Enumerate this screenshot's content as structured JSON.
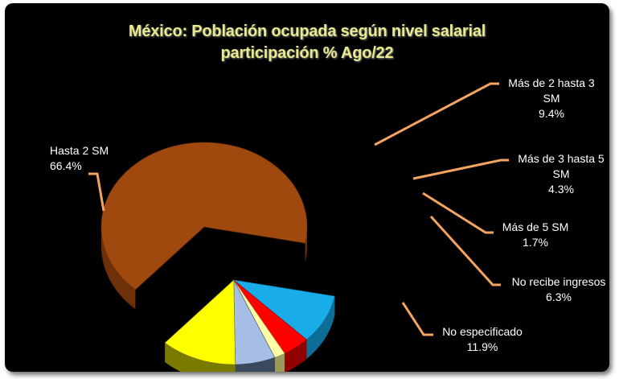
{
  "colors": {
    "background": "#000000",
    "title": "#e9e98f",
    "leader_line": "#f4a460",
    "label_text": "#ffffff"
  },
  "chart_data": {
    "type": "pie",
    "title": "México: Población ocupada según nivel salarial",
    "subtitle": "participación % Ago/22",
    "slices": [
      {
        "label": "Hasta 2 SM",
        "value": 66.4,
        "color": "#a0490f",
        "side_color": "#6e3009",
        "exploded": false,
        "label_lines": [
          "Hasta 2 SM",
          "66.4%"
        ]
      },
      {
        "label": "Más de 2 hasta 3 SM",
        "value": 9.4,
        "color": "#18ade8",
        "side_color": "#0e6d96",
        "exploded": true,
        "label_lines": [
          "Más de 2 hasta 3",
          "SM",
          "9.4%"
        ]
      },
      {
        "label": "Más de 3 hasta 5 SM",
        "value": 4.3,
        "color": "#ff0000",
        "side_color": "#900000",
        "exploded": true,
        "label_lines": [
          "Más de 3 hasta 5",
          "SM",
          "4.3%"
        ]
      },
      {
        "label": "Más de 5 SM",
        "value": 1.7,
        "color": "#ffffa6",
        "side_color": "#9a9a5a",
        "exploded": true,
        "label_lines": [
          "Más de 5 SM",
          "1.7%"
        ]
      },
      {
        "label": "No recibe ingresos",
        "value": 6.3,
        "color": "#a6bde6",
        "side_color": "#3a4a5c",
        "exploded": true,
        "label_lines": [
          "No recibe ingresos",
          "6.3%"
        ]
      },
      {
        "label": "No especificado",
        "value": 11.9,
        "color": "#ffff00",
        "side_color": "#7a7a00",
        "exploded": true,
        "label_lines": [
          "No especificado",
          "11.9%"
        ]
      }
    ]
  }
}
